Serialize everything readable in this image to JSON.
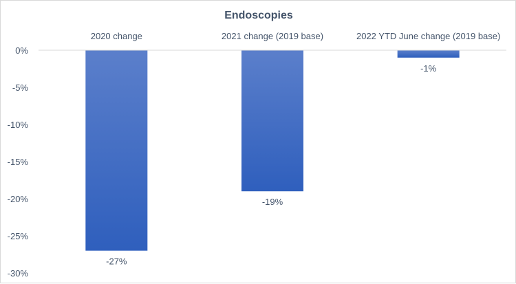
{
  "chart_data": {
    "type": "bar",
    "title": "Endoscopies",
    "categories": [
      "2020 change",
      "2021 change (2019 base)",
      "2022 YTD June change (2019 base)"
    ],
    "values": [
      -27,
      -19,
      -1
    ],
    "data_labels": [
      "-27%",
      "-19%",
      "-1%"
    ],
    "y_ticks": [
      0,
      -5,
      -10,
      -15,
      -20,
      -25,
      -30
    ],
    "y_tick_labels": [
      "0%",
      "-5%",
      "-10%",
      "-15%",
      "-20%",
      "-25%",
      "-30%"
    ],
    "ylim": [
      -30,
      0
    ],
    "xlabel": "",
    "ylabel": "",
    "category_axis_position": "top",
    "grid": false,
    "legend": "none",
    "colors": {
      "bar_top": "#5b7fcb",
      "bar_bottom": "#2f5fbd",
      "text": "#44546a",
      "axis": "#d9d9d9"
    }
  }
}
